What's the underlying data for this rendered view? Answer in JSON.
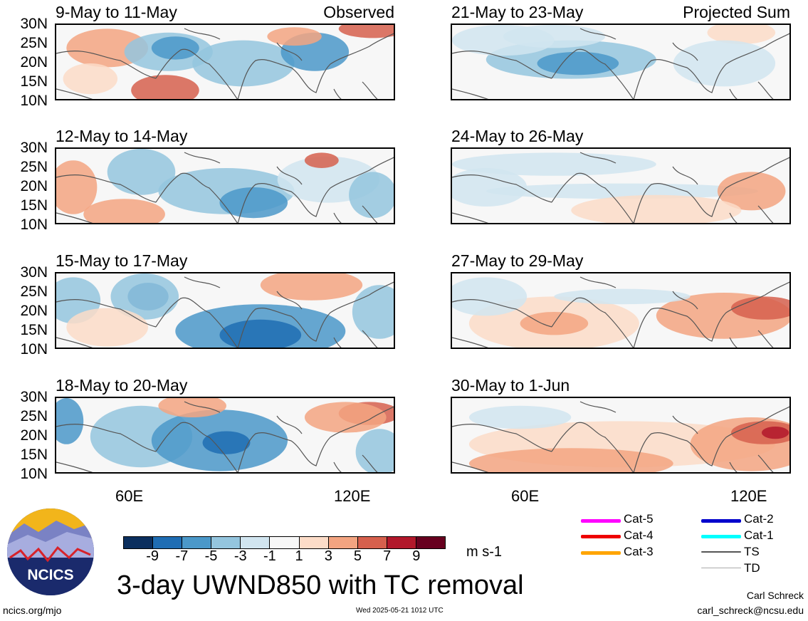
{
  "panels": [
    {
      "title": "9-May to 11-May",
      "tag": "Observed"
    },
    {
      "title": "12-May to 14-May",
      "tag": ""
    },
    {
      "title": "15-May to 17-May",
      "tag": ""
    },
    {
      "title": "18-May to 20-May",
      "tag": ""
    },
    {
      "title": "21-May to 23-May",
      "tag": "Projected Sum"
    },
    {
      "title": "24-May to 26-May",
      "tag": ""
    },
    {
      "title": "27-May to 29-May",
      "tag": ""
    },
    {
      "title": "30-May to 1-Jun",
      "tag": ""
    }
  ],
  "lat_labels": [
    "30N",
    "25N",
    "20N",
    "15N",
    "10N"
  ],
  "lon_labels": [
    "60E",
    "120E"
  ],
  "colorbar": {
    "colors": [
      "#0b2f5e",
      "#1f6db3",
      "#4b98c9",
      "#94c5de",
      "#d1e5f0",
      "#f7f7f7",
      "#fcdcc8",
      "#f3a481",
      "#d6604d",
      "#b2182b",
      "#67001f"
    ],
    "labels": [
      "-9",
      "-7",
      "-5",
      "-3",
      "-1",
      "1",
      "3",
      "5",
      "7",
      "9"
    ],
    "units": "m s-1"
  },
  "main_title": "3-day UWND850 with TC removal",
  "legend": [
    {
      "label": "Cat-5",
      "color": "#ff00ff"
    },
    {
      "label": "Cat-4",
      "color": "#ee0000"
    },
    {
      "label": "Cat-3",
      "color": "#ffa500"
    },
    {
      "label": "Cat-2",
      "color": "#0000cc"
    },
    {
      "label": "Cat-1",
      "color": "#00ffff"
    },
    {
      "label": "TS",
      "color": "#555555"
    },
    {
      "label": "TD",
      "color": "#aaaaaa"
    }
  ],
  "logo": {
    "text": "NCICS"
  },
  "footer": {
    "url": "ncics.org/mjo",
    "timestamp": "Wed 2025-05-21 1012 UTC",
    "author": "Carl Schreck",
    "email": "carl_schreck@ncsu.edu"
  }
}
